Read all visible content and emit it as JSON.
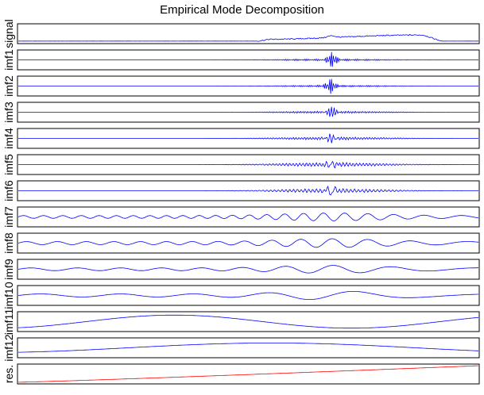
{
  "chart_data": {
    "type": "line",
    "title": "Empirical Mode Decomposition",
    "series_color": "#0000ff",
    "residual_color": "#ff0000",
    "panels": [
      {
        "label": "signal",
        "kind": "signal"
      },
      {
        "label": "imf1",
        "kind": "burst",
        "freq": 200,
        "amp": 0.12,
        "peak": 0.9
      },
      {
        "label": "imf2",
        "kind": "burst",
        "freq": 150,
        "amp": 0.12,
        "peak": 0.9
      },
      {
        "label": "imf3",
        "kind": "burst",
        "freq": 110,
        "amp": 0.14,
        "peak": 0.6
      },
      {
        "label": "imf4",
        "kind": "burst",
        "freq": 80,
        "amp": 0.18,
        "peak": 0.45
      },
      {
        "label": "imf5",
        "kind": "burst",
        "freq": 55,
        "amp": 0.25,
        "peak": 0.35
      },
      {
        "label": "imf6",
        "kind": "burst",
        "freq": 38,
        "amp": 0.25,
        "peak": 0.5
      },
      {
        "label": "imf7",
        "kind": "wave",
        "freq": 22,
        "amp": 0.45
      },
      {
        "label": "imf8",
        "kind": "wave",
        "freq": 14,
        "amp": 0.5
      },
      {
        "label": "imf9",
        "kind": "wave",
        "freq": 9,
        "amp": 0.45
      },
      {
        "label": "imf10",
        "kind": "wave",
        "freq": 5,
        "amp": 0.5
      },
      {
        "label": "imf11",
        "kind": "slow",
        "freq": 1.3,
        "amp": 0.75
      },
      {
        "label": "imf12",
        "kind": "slow",
        "freq": 0.8,
        "amp": 0.55
      },
      {
        "label": "res.",
        "kind": "residual"
      }
    ]
  }
}
